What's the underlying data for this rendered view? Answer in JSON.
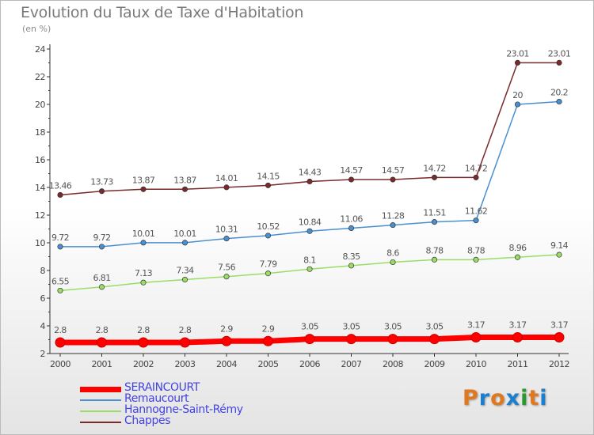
{
  "chart_data": {
    "type": "line",
    "title": "Evolution du Taux de Taxe d'Habitation",
    "subtitle": "(en %)",
    "x": [
      "2000",
      "2001",
      "2002",
      "2003",
      "2004",
      "2005",
      "2006",
      "2007",
      "2008",
      "2009",
      "2010",
      "2011",
      "2012"
    ],
    "ylim": [
      2,
      24
    ],
    "yticks": [
      2,
      4,
      6,
      8,
      10,
      12,
      14,
      16,
      18,
      20,
      22,
      24
    ],
    "grid": false,
    "legend_position": "bottom-left",
    "series": [
      {
        "name": "SERAINCOURT",
        "color": "#ff0000",
        "values": [
          2.8,
          2.8,
          2.8,
          2.8,
          2.9,
          2.9,
          3.05,
          3.05,
          3.05,
          3.05,
          3.17,
          3.17,
          3.17
        ],
        "labels": [
          "2.8",
          "2.8",
          "2.8",
          "2.8",
          "2.9",
          "2.9",
          "3.05",
          "3.05",
          "3.05",
          "3.05",
          "3.17",
          "3.17",
          "3.17"
        ]
      },
      {
        "name": "Remaucourt",
        "color": "#4a90d0",
        "values": [
          9.72,
          9.72,
          10.01,
          10.01,
          10.31,
          10.52,
          10.84,
          11.06,
          11.28,
          11.51,
          11.62,
          20,
          20.2
        ],
        "labels": [
          "9.72",
          "9.72",
          "10.01",
          "10.01",
          "10.31",
          "10.52",
          "10.84",
          "11.06",
          "11.28",
          "11.51",
          "11.62",
          "20",
          "20.2"
        ]
      },
      {
        "name": "Hannogne-Saint-Rémy",
        "color": "#99dd66",
        "values": [
          6.55,
          6.81,
          7.13,
          7.34,
          7.56,
          7.79,
          8.1,
          8.35,
          8.6,
          8.78,
          8.78,
          8.96,
          9.14
        ],
        "labels": [
          "6.55",
          "6.81",
          "7.13",
          "7.34",
          "7.56",
          "7.79",
          "8.1",
          "8.35",
          "8.6",
          "8.78",
          "8.78",
          "8.96",
          "9.14"
        ]
      },
      {
        "name": "Chappes",
        "color": "#7a2a2a",
        "values": [
          13.46,
          13.73,
          13.87,
          13.87,
          14.01,
          14.15,
          14.43,
          14.57,
          14.57,
          14.72,
          14.72,
          23.01,
          23.01
        ],
        "labels": [
          "13.46",
          "13.73",
          "13.87",
          "13.87",
          "14.01",
          "14.15",
          "14.43",
          "14.57",
          "14.57",
          "14.72",
          "14.72",
          "23.01",
          "23.01"
        ]
      }
    ]
  },
  "logo": {
    "letters": [
      "P",
      "r",
      "o",
      "x",
      "i",
      "t",
      "i"
    ]
  }
}
